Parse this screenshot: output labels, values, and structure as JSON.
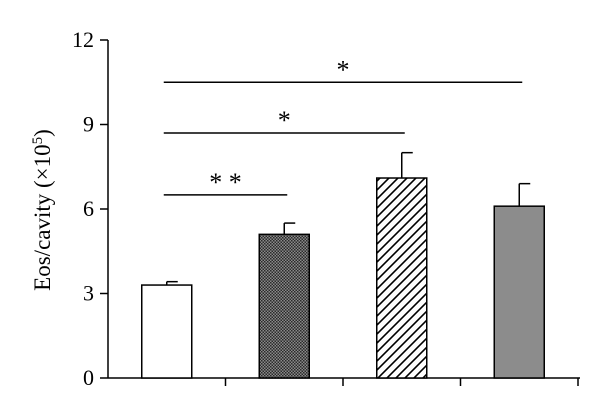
{
  "chart_data": {
    "type": "bar",
    "categories": [
      "",
      "",
      "",
      ""
    ],
    "values": [
      3.3,
      5.1,
      7.1,
      6.1
    ],
    "errors": [
      0.12,
      0.4,
      0.9,
      0.8
    ],
    "ylim": [
      0,
      12
    ],
    "yticks": [
      0,
      3,
      6,
      9,
      12
    ],
    "ylabel": {
      "main": "Eos/cavity (×10",
      "exp": "5",
      "close": ")"
    },
    "fills": [
      "white",
      "dark-stipple",
      "diagonal-hatch",
      "gray"
    ],
    "colors": {
      "dark": "#555555",
      "gray": "#8c8c8c",
      "line": "#000000",
      "background": "#ffffff"
    },
    "significance": [
      {
        "from": 0,
        "to": 1,
        "label": "* *",
        "y": 6.5
      },
      {
        "from": 0,
        "to": 2,
        "label": "*",
        "y": 8.7
      },
      {
        "from": 0,
        "to": 3,
        "label": "*",
        "y": 10.5
      }
    ],
    "grid": false,
    "legend": "none"
  }
}
